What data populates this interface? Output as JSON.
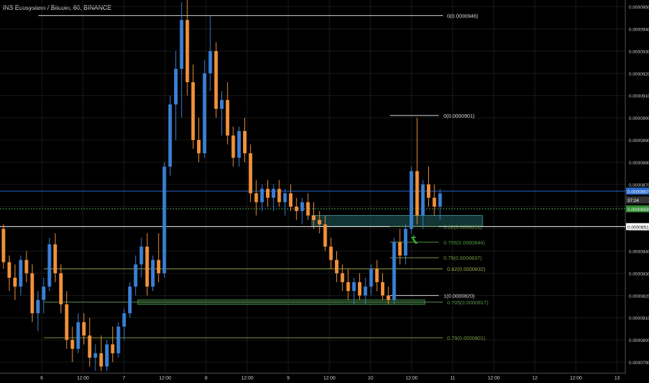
{
  "header": {
    "title": "INS Ecosystem / Bitcoin, 60, BINANCE"
  },
  "chart_data": {
    "type": "candlestick",
    "ylim": [
      7.85e-05,
      9.53e-05
    ],
    "y_ticks": [
      "0.0000950",
      "0.0000940",
      "0.0000930",
      "0.0000920",
      "0.0000910",
      "0.0000900",
      "0.0000890",
      "0.0000880",
      "0.0000870",
      "0.0000860",
      "0.0000850",
      "0.0000840",
      "0.0000830",
      "0.0000820",
      "0.0000810",
      "0.0000800",
      "0.0000790"
    ],
    "x_ticks": [
      "6",
      "12:00",
      "7",
      "12:00",
      "8",
      "12:00",
      "9",
      "12:00",
      "10",
      "12:00",
      "11",
      "12:00",
      "12",
      "12:00",
      "13"
    ],
    "price_labels": [
      {
        "text": "0.0000867",
        "value": 8.67e-05,
        "color": "#2a6ad0"
      },
      {
        "text": "37:24",
        "value": 8.63e-05,
        "color": "#333333"
      },
      {
        "text": "0.0000859",
        "value": 8.59e-05,
        "color": "#2e8b2e"
      },
      {
        "text": "0.0000851",
        "value": 8.51e-05,
        "color": "#ffffff"
      }
    ],
    "horizontal_lines": [
      {
        "value": 8.67e-05,
        "color": "#2a6ad0",
        "style": "solid"
      },
      {
        "value": 8.59e-05,
        "color": "#4caf50",
        "style": "dashed"
      },
      {
        "value": 8.51e-05,
        "color": "#ffffff",
        "style": "solid"
      }
    ],
    "fib_set_1": [
      {
        "label": "0(0.0000946)",
        "value": 9.46e-05,
        "color": "#dddddd",
        "from": "12:00",
        "to": "11 12:00"
      },
      {
        "label": "0.62(0.0000832)",
        "value": 8.32e-05,
        "color": "#9aaa50",
        "from": "6",
        "to": "11 12:00"
      },
      {
        "label": "0.705(0.0000817)",
        "value": 8.17e-05,
        "color": "#5a9a50",
        "from": "6",
        "to": "11 12:00"
      },
      {
        "label": "0.79(0.0000801)",
        "value": 8.01e-05,
        "color": "#7a9a40",
        "from": "6",
        "to": "11 12:00"
      }
    ],
    "fib_set_2": [
      {
        "label": "0(0.0000901)",
        "value": 9.01e-05,
        "color": "#dddddd"
      },
      {
        "label": "0.62(0.0000851)",
        "value": 8.51e-05,
        "color": "#6a9a50"
      },
      {
        "label": "0.705(0.0000844)",
        "value": 8.44e-05,
        "color": "#4a9a40"
      },
      {
        "label": "0.79(0.0000837)",
        "value": 8.37e-05,
        "color": "#7a9a40"
      },
      {
        "label": "1(0.0000820)",
        "value": 8.2e-05,
        "color": "#dddddd"
      }
    ],
    "zones": [
      {
        "from": 8.51e-05,
        "to": 8.56e-05,
        "color": "#1a4a4a",
        "stroke": "#3a8a8a"
      },
      {
        "from": 8.16e-05,
        "to": 8.18e-05,
        "color": "#1a3a1a",
        "stroke": "#4a8a4a"
      }
    ],
    "colors": {
      "up": "#3a7fd5",
      "down": "#f0903a",
      "grid": "#1a1a1a",
      "axis_text": "#cccccc"
    },
    "candles": [
      [
        8.5e-05,
        8.52e-05,
        8.32e-05,
        8.35e-05
      ],
      [
        8.35e-05,
        8.38e-05,
        8.22e-05,
        8.28e-05
      ],
      [
        8.28e-05,
        8.34e-05,
        8.18e-05,
        8.24e-05
      ],
      [
        8.24e-05,
        8.38e-05,
        8.2e-05,
        8.36e-05
      ],
      [
        8.36e-05,
        8.4e-05,
        8.26e-05,
        8.3e-05
      ],
      [
        8.3e-05,
        8.34e-05,
        8.08e-05,
        8.12e-05
      ],
      [
        8.12e-05,
        8.22e-05,
        8.04e-05,
        8.18e-05
      ],
      [
        8.18e-05,
        8.28e-05,
        8.12e-05,
        8.24e-05
      ],
      [
        8.24e-05,
        8.46e-05,
        8.22e-05,
        8.43e-05
      ],
      [
        8.43e-05,
        8.48e-05,
        8.26e-05,
        8.3e-05
      ],
      [
        8.3e-05,
        8.34e-05,
        8.12e-05,
        8.16e-05
      ],
      [
        8.16e-05,
        8.22e-05,
        7.96e-05,
        8e-05
      ],
      [
        8e-05,
        8.06e-05,
        7.9e-05,
        7.96e-05
      ],
      [
        7.96e-05,
        8.12e-05,
        7.94e-05,
        8.08e-05
      ],
      [
        8.08e-05,
        8.12e-05,
        7.98e-05,
        8.02e-05
      ],
      [
        8.02e-05,
        8.1e-05,
        7.88e-05,
        7.92e-05
      ],
      [
        7.92e-05,
        7.98e-05,
        7.86e-05,
        7.94e-05
      ],
      [
        7.94e-05,
        8.02e-05,
        7.86e-05,
        7.88e-05
      ],
      [
        7.88e-05,
        8e-05,
        7.86e-05,
        7.98e-05
      ],
      [
        7.98e-05,
        8.06e-05,
        7.9e-05,
        7.94e-05
      ],
      [
        7.94e-05,
        8.08e-05,
        7.92e-05,
        8.06e-05
      ],
      [
        8.06e-05,
        8.14e-05,
        8e-05,
        8.12e-05
      ],
      [
        8.12e-05,
        8.26e-05,
        8.1e-05,
        8.24e-05
      ],
      [
        8.24e-05,
        8.38e-05,
        8.2e-05,
        8.34e-05
      ],
      [
        8.34e-05,
        8.46e-05,
        8.28e-05,
        8.42e-05
      ],
      [
        8.42e-05,
        8.48e-05,
        8.2e-05,
        8.24e-05
      ],
      [
        8.24e-05,
        8.38e-05,
        8.22e-05,
        8.36e-05
      ],
      [
        8.36e-05,
        8.48e-05,
        8.26e-05,
        8.3e-05
      ],
      [
        8.3e-05,
        8.8e-05,
        8.28e-05,
        8.78e-05
      ],
      [
        8.78e-05,
        9.1e-05,
        8.74e-05,
        9.06e-05
      ],
      [
        9.06e-05,
        9.3e-05,
        8.9e-05,
        9.22e-05
      ],
      [
        9.22e-05,
        9.52e-05,
        9e-05,
        9.44e-05
      ],
      [
        9.44e-05,
        9.56e-05,
        9.1e-05,
        9.16e-05
      ],
      [
        9.16e-05,
        9.24e-05,
        8.86e-05,
        8.9e-05
      ],
      [
        8.9e-05,
        9e-05,
        8.8e-05,
        8.84e-05
      ],
      [
        8.84e-05,
        9.26e-05,
        8.82e-05,
        9.2e-05
      ],
      [
        9.2e-05,
        9.46e-05,
        9.12e-05,
        9.3e-05
      ],
      [
        9.3e-05,
        9.34e-05,
        9e-05,
        9.04e-05
      ],
      [
        9.04e-05,
        9.12e-05,
        8.92e-05,
        9.08e-05
      ],
      [
        9.08e-05,
        9.16e-05,
        8.88e-05,
        8.92e-05
      ],
      [
        8.92e-05,
        8.96e-05,
        8.78e-05,
        8.82e-05
      ],
      [
        8.82e-05,
        8.96e-05,
        8.78e-05,
        8.94e-05
      ],
      [
        8.94e-05,
        9e-05,
        8.8e-05,
        8.84e-05
      ],
      [
        8.84e-05,
        8.88e-05,
        8.62e-05,
        8.66e-05
      ],
      [
        8.66e-05,
        8.72e-05,
        8.56e-05,
        8.62e-05
      ],
      [
        8.62e-05,
        8.7e-05,
        8.58e-05,
        8.68e-05
      ],
      [
        8.68e-05,
        8.72e-05,
        8.6e-05,
        8.64e-05
      ],
      [
        8.64e-05,
        8.7e-05,
        8.58e-05,
        8.68e-05
      ],
      [
        8.68e-05,
        8.72e-05,
        8.6e-05,
        8.62e-05
      ],
      [
        8.62e-05,
        8.68e-05,
        8.56e-05,
        8.66e-05
      ],
      [
        8.66e-05,
        8.7e-05,
        8.58e-05,
        8.6e-05
      ],
      [
        8.6e-05,
        8.64e-05,
        8.54e-05,
        8.58e-05
      ],
      [
        8.58e-05,
        8.64e-05,
        8.52e-05,
        8.62e-05
      ],
      [
        8.62e-05,
        8.66e-05,
        8.54e-05,
        8.56e-05
      ],
      [
        8.56e-05,
        8.62e-05,
        8.5e-05,
        8.54e-05
      ],
      [
        8.54e-05,
        8.58e-05,
        8.48e-05,
        8.52e-05
      ],
      [
        8.52e-05,
        8.56e-05,
        8.4e-05,
        8.42e-05
      ],
      [
        8.42e-05,
        8.46e-05,
        8.32e-05,
        8.36e-05
      ],
      [
        8.36e-05,
        8.4e-05,
        8.26e-05,
        8.3e-05
      ],
      [
        8.3e-05,
        8.34e-05,
        8.22e-05,
        8.26e-05
      ],
      [
        8.26e-05,
        8.32e-05,
        8.18e-05,
        8.22e-05
      ],
      [
        8.22e-05,
        8.28e-05,
        8.16e-05,
        8.26e-05
      ],
      [
        8.26e-05,
        8.3e-05,
        8.18e-05,
        8.2e-05
      ],
      [
        8.2e-05,
        8.28e-05,
        8.16e-05,
        8.24e-05
      ],
      [
        8.24e-05,
        8.34e-05,
        8.2e-05,
        8.32e-05
      ],
      [
        8.32e-05,
        8.36e-05,
        8.22e-05,
        8.26e-05
      ],
      [
        8.26e-05,
        8.3e-05,
        8.18e-05,
        8.2e-05
      ],
      [
        8.2e-05,
        8.24e-05,
        8.16e-05,
        8.18e-05
      ],
      [
        8.18e-05,
        8.46e-05,
        8.16e-05,
        8.44e-05
      ],
      [
        8.44e-05,
        8.5e-05,
        8.34e-05,
        8.38e-05
      ],
      [
        8.38e-05,
        8.52e-05,
        8.34e-05,
        8.5e-05
      ],
      [
        8.5e-05,
        8.78e-05,
        8.48e-05,
        8.76e-05
      ],
      [
        8.76e-05,
        9e-05,
        8.52e-05,
        8.56e-05
      ],
      [
        8.56e-05,
        8.72e-05,
        8.5e-05,
        8.7e-05
      ],
      [
        8.7e-05,
        8.78e-05,
        8.6e-05,
        8.64e-05
      ],
      [
        8.64e-05,
        8.7e-05,
        8.56e-05,
        8.6e-05
      ],
      [
        8.6e-05,
        8.68e-05,
        8.54e-05,
        8.66e-05
      ]
    ]
  }
}
